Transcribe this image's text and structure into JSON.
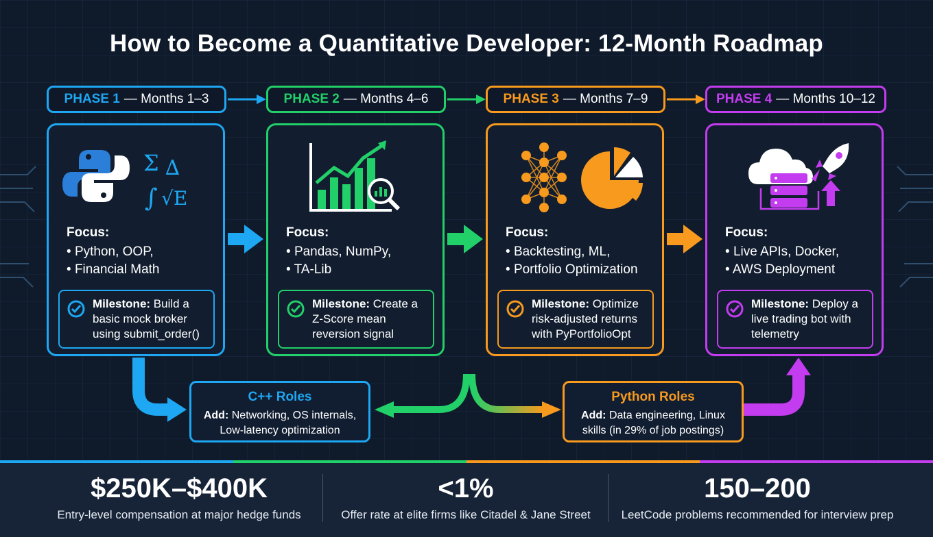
{
  "title": "How to Become a Quantitative Developer: 12-Month Roadmap",
  "colors": {
    "phase1": "#1ea7f2",
    "phase2": "#22d06a",
    "phase3": "#f79a1e",
    "phase4": "#c43cf0"
  },
  "phases": [
    {
      "label": "PHASE 1",
      "months": "— Months 1–3",
      "icon": "python-math-icon",
      "focus_title": "Focus:",
      "focus": [
        "Python, OOP,",
        "Financial Math"
      ],
      "milestone_label": "Milestone:",
      "milestone_text": "Build a basic mock broker using submit_order()"
    },
    {
      "label": "PHASE 2",
      "months": "— Months 4–6",
      "icon": "chart-magnifier-icon",
      "focus_title": "Focus:",
      "focus": [
        "Pandas, NumPy,",
        "TA-Lib"
      ],
      "milestone_label": "Milestone:",
      "milestone_text": "Create a Z-Score mean reversion signal"
    },
    {
      "label": "PHASE 3",
      "months": "— Months 7–9",
      "icon": "neural-net-pie-icon",
      "focus_title": "Focus:",
      "focus": [
        "Backtesting, ML,",
        "Portfolio Optimization"
      ],
      "milestone_label": "Milestone:",
      "milestone_text": "Optimize risk-adjusted returns with PyPortfolioOpt"
    },
    {
      "label": "PHASE 4",
      "months": "— Months 10–12",
      "icon": "cloud-server-rocket-icon",
      "focus_title": "Focus:",
      "focus": [
        "Live APIs, Docker,",
        "AWS Deployment"
      ],
      "milestone_label": "Milestone:",
      "milestone_text": "Deploy a live trading bot with telemetry"
    }
  ],
  "roles": [
    {
      "title": "C++ Roles",
      "add_label": "Add:",
      "text_line1": "Networking, OS internals,",
      "text_line2": "Low-latency optimization"
    },
    {
      "title": "Python Roles",
      "add_label": "Add:",
      "text_line1": "Data engineering, Linux",
      "text_line2": "skills (in 29% of job postings)"
    }
  ],
  "stats": [
    {
      "value": "$250K–$400K",
      "label": "Entry-level compensation at major hedge funds"
    },
    {
      "value": "<1%",
      "label": "Offer rate at elite firms like Citadel & Jane Street"
    },
    {
      "value": "150–200",
      "label": "LeetCode problems recommended for interview prep"
    }
  ]
}
